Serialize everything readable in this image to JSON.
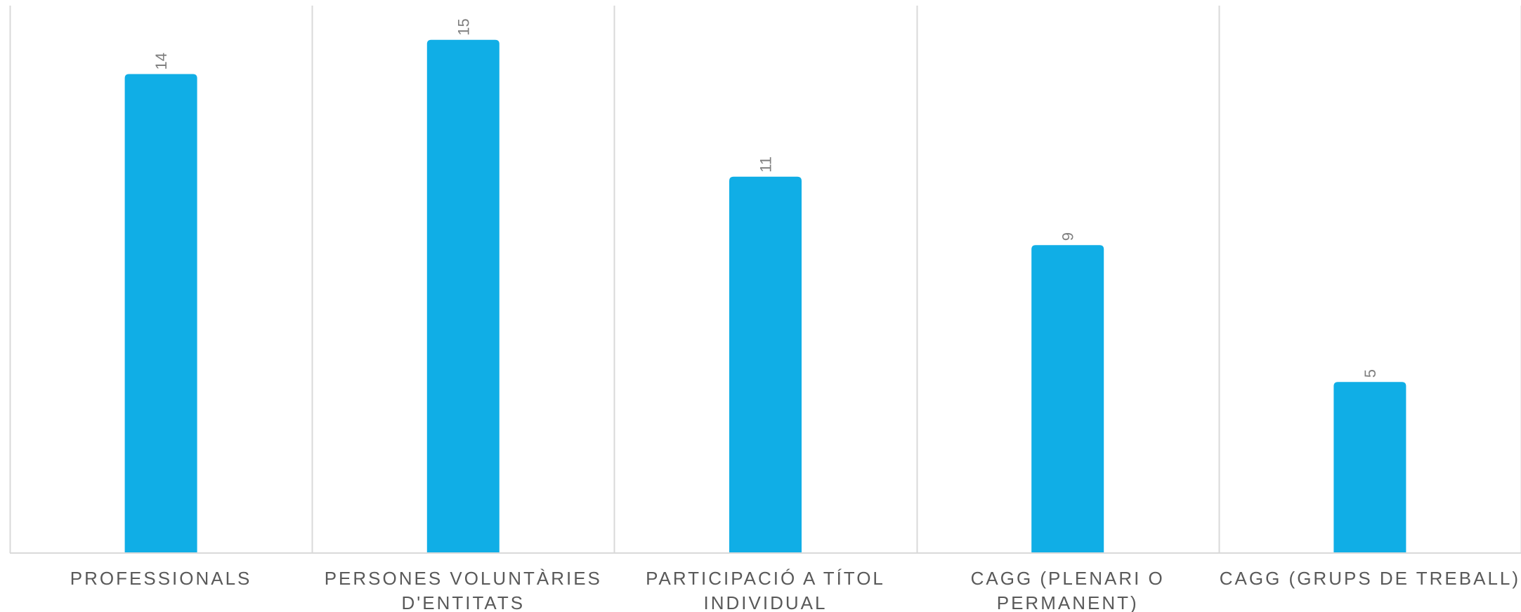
{
  "chart_data": {
    "type": "bar",
    "categories": [
      [
        "PROFESSIONALS"
      ],
      [
        "PERSONES VOLUNTÀRIES",
        "D'ENTITATS"
      ],
      [
        "PARTICIPACIÓ A TÍTOL",
        "INDIVIDUAL"
      ],
      [
        "CAGG (PLENARI O",
        "PERMANENT)"
      ],
      [
        "CAGG (GRUPS DE TREBALL)"
      ]
    ],
    "values": [
      14,
      15,
      11,
      9,
      5
    ],
    "data_labels": [
      "14",
      "15",
      "11",
      "9",
      "5"
    ],
    "title": "",
    "xlabel": "",
    "ylabel": "",
    "ylim": [
      0,
      16
    ],
    "grid": "vertical category separators",
    "legend": "none",
    "bar_color": "#10AEE6"
  }
}
